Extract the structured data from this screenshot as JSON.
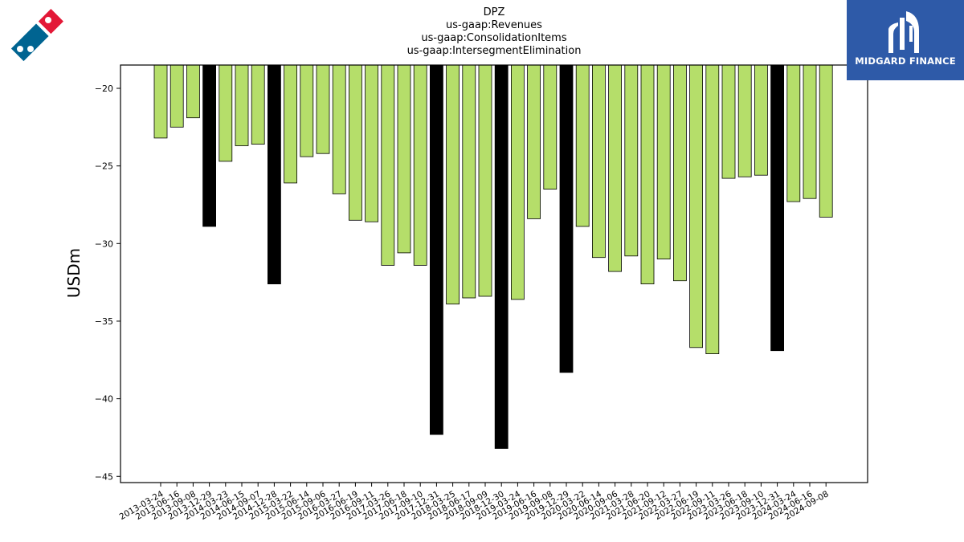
{
  "title_lines": [
    "DPZ",
    "us-gaap:Revenues",
    "us-gaap:ConsolidationItems",
    "us-gaap:IntersegmentElimination"
  ],
  "brand": {
    "name": "MIDGARD FINANCE",
    "color": "#2e5aa8"
  },
  "logo": {
    "name": "dominos-logo",
    "colors": [
      "#e31837",
      "#006491"
    ]
  },
  "chart_data": {
    "type": "bar",
    "title": "DPZ us-gaap:Revenues us-gaap:ConsolidationItems us-gaap:IntersegmentElimination",
    "xlabel": "",
    "ylabel": "USDm",
    "ylim": [
      -45.4,
      -18.5
    ],
    "yticks": [
      -20,
      -25,
      -30,
      -35,
      -40,
      -45
    ],
    "ytick_labels": [
      "−20",
      "−25",
      "−30",
      "−35",
      "−40",
      "−45"
    ],
    "categories": [
      "2013-03-24",
      "2013-06-16",
      "2013-09-08",
      "2013-12-29",
      "2014-03-23",
      "2014-06-15",
      "2014-09-07",
      "2014-12-28",
      "2015-03-22",
      "2015-06-14",
      "2015-09-06",
      "2016-03-27",
      "2016-06-19",
      "2016-09-11",
      "2017-03-26",
      "2017-06-18",
      "2017-09-10",
      "2017-12-31",
      "2018-03-25",
      "2018-06-17",
      "2018-09-09",
      "2018-12-30",
      "2019-03-24",
      "2019-06-16",
      "2019-09-08",
      "2019-12-29",
      "2020-03-22",
      "2020-06-14",
      "2020-09-06",
      "2021-03-28",
      "2021-06-20",
      "2021-09-12",
      "2022-03-27",
      "2022-06-19",
      "2022-09-11",
      "2023-03-26",
      "2023-06-18",
      "2023-09-10",
      "2023-12-31",
      "2024-03-24",
      "2024-06-16",
      "2024-09-08"
    ],
    "values": [
      -23.2,
      -22.5,
      -21.9,
      -28.9,
      -24.7,
      -23.7,
      -23.6,
      -32.6,
      -26.1,
      -24.4,
      -24.2,
      -26.8,
      -28.5,
      -28.6,
      -31.4,
      -30.6,
      -31.4,
      -42.3,
      -33.9,
      -33.5,
      -33.4,
      -43.2,
      -33.6,
      -28.4,
      -26.5,
      -38.3,
      -28.9,
      -30.9,
      -31.8,
      -30.8,
      -32.6,
      -31.0,
      -32.4,
      -36.7,
      -37.1,
      -25.8,
      -25.7,
      -25.6,
      -36.9,
      -27.3,
      -27.1,
      -28.3
    ],
    "highlight": [
      false,
      false,
      false,
      true,
      false,
      false,
      false,
      true,
      false,
      false,
      false,
      false,
      false,
      false,
      false,
      false,
      false,
      true,
      false,
      false,
      false,
      true,
      false,
      false,
      false,
      true,
      false,
      false,
      false,
      false,
      false,
      false,
      false,
      false,
      false,
      false,
      false,
      false,
      true,
      false,
      false,
      false
    ],
    "colors": {
      "normal": "#b5de6a",
      "highlight": "#000000",
      "edge": "#000000"
    },
    "grid": false,
    "legend": "none"
  }
}
